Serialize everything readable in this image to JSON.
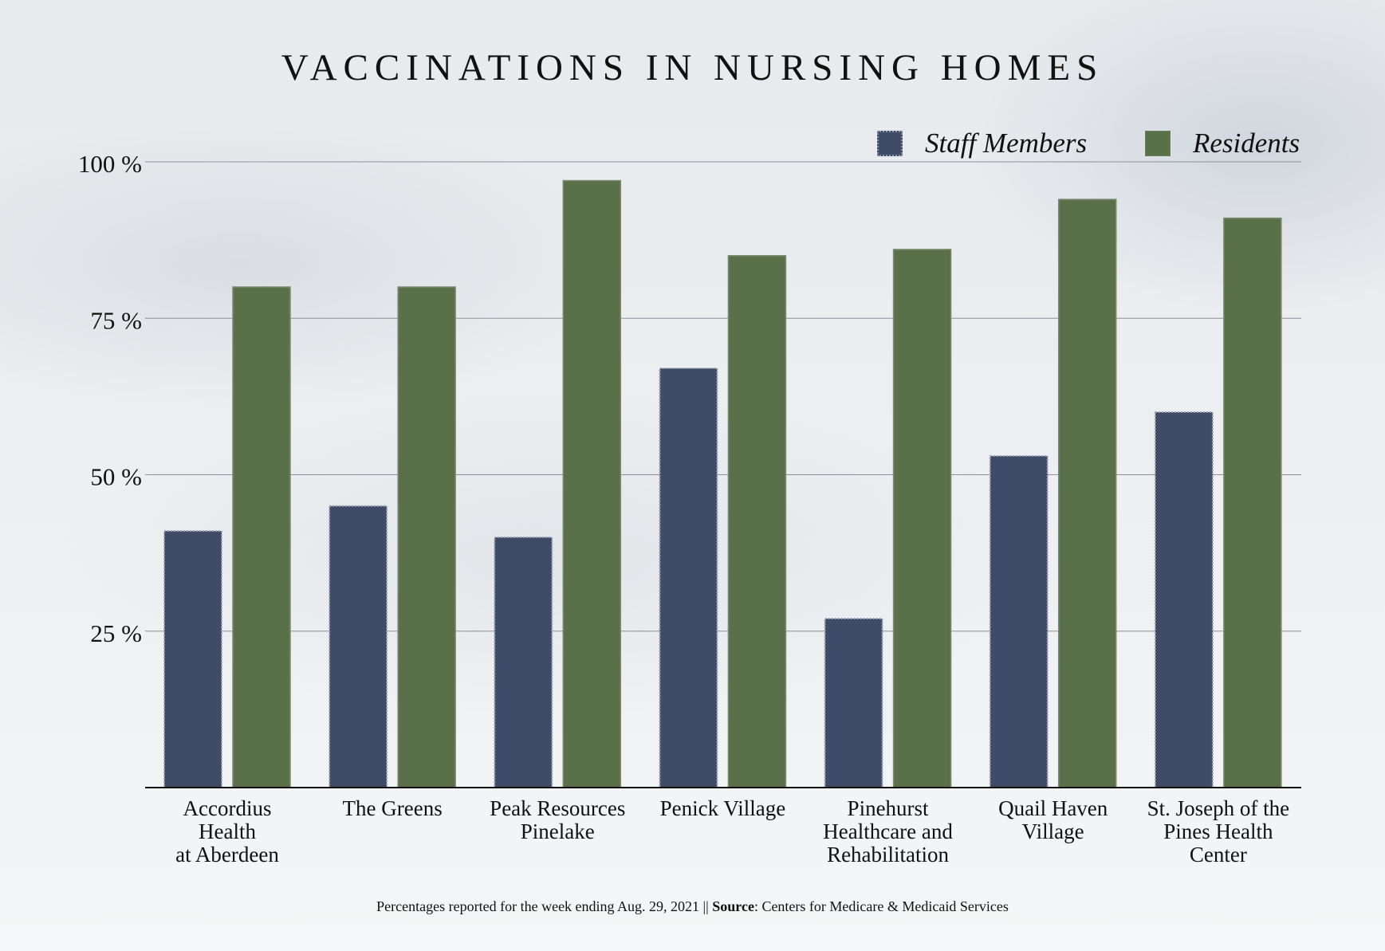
{
  "chart_data": {
    "type": "bar",
    "title": "VACCINATIONS IN NURSING HOMES",
    "categories": [
      "Accordius\nHealth\nat Aberdeen",
      "The Greens",
      "Peak Resources\nPinelake",
      "Penick Village",
      "Pinehurst\nHealthcare and\nRehabilitation",
      "Quail Haven\nVillage",
      "St. Joseph of the\nPines Health\nCenter"
    ],
    "series": [
      {
        "name": "Staff Members",
        "color": "#3f4b67",
        "values": [
          41,
          45,
          40,
          67,
          27,
          53,
          60
        ]
      },
      {
        "name": "Residents",
        "color": "#5a7048",
        "values": [
          80,
          80,
          97,
          85,
          86,
          94,
          91
        ]
      }
    ],
    "ylim": [
      0,
      100
    ],
    "yticks": [
      25,
      50,
      75,
      100
    ],
    "ytick_labels": [
      "25 %",
      "50 %",
      "75 %",
      "100 %"
    ],
    "xlabel": "",
    "ylabel": "",
    "grid": true,
    "legend": "top-right"
  },
  "footnote": {
    "text": "Percentages reported for the week ending Aug. 29, 2021 || ",
    "source_label": "Source",
    "source_text": ": Centers for Medicare & Medicaid Services"
  }
}
